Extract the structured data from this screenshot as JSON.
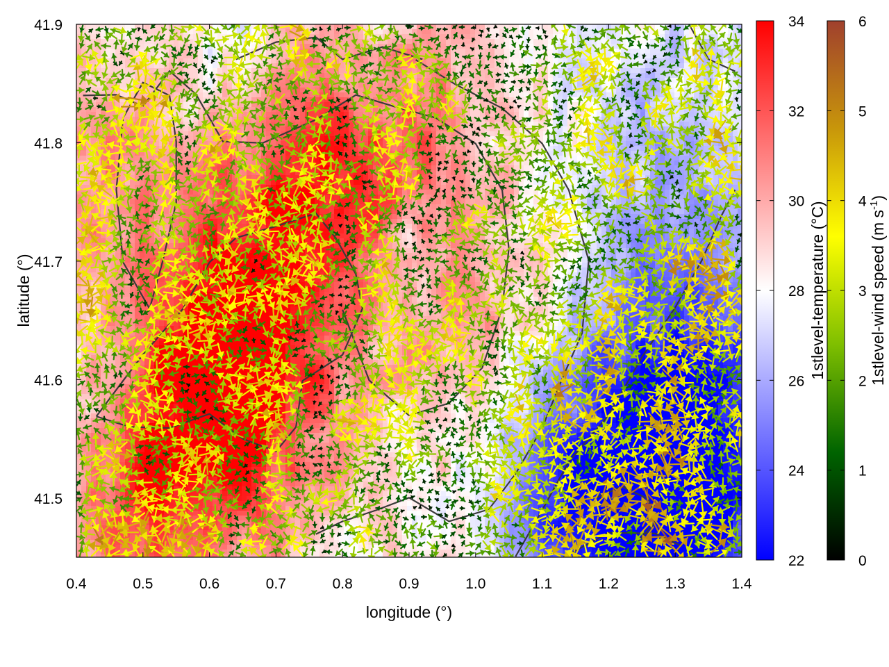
{
  "chart_data": {
    "type": "heatmap",
    "title": "",
    "xlabel": "longitude (°)",
    "ylabel": "latitude (°)",
    "xlim": [
      0.4,
      1.4
    ],
    "ylim": [
      41.45,
      41.9
    ],
    "x_ticks": [
      "0.4",
      "0.5",
      "0.6",
      "0.7",
      "0.8",
      "0.9",
      "1.0",
      "1.1",
      "1.2",
      "1.3",
      "1.4"
    ],
    "y_ticks": [
      "41.5",
      "41.6",
      "41.7",
      "41.8",
      "41.9"
    ],
    "grid": false,
    "legend": "none",
    "temperature_colorbar": {
      "label": "1stlevel-temperature (°C)",
      "range": [
        22,
        34
      ],
      "ticks": [
        "22",
        "24",
        "26",
        "28",
        "30",
        "32",
        "34"
      ],
      "colors": [
        "#0000ff",
        "#ffffff",
        "#ff0000"
      ]
    },
    "wind_colorbar": {
      "label_main": "1stlevel-wind speed (m s",
      "label_sup": "-1",
      "label_end": ")",
      "range": [
        0,
        6
      ],
      "ticks": [
        "0",
        "1",
        "2",
        "3",
        "4",
        "5",
        "6"
      ],
      "colors": [
        "#000000",
        "#006400",
        "#7fbf00",
        "#ffff00",
        "#c8960a",
        "#a0402d"
      ]
    },
    "temperature_field": {
      "background": 28.5,
      "anomalies": [
        {
          "lon": 0.66,
          "lat": 41.59,
          "dT": 4.0,
          "spread": 0.09
        },
        {
          "lon": 0.55,
          "lat": 41.56,
          "dT": 2.5,
          "spread": 0.08
        },
        {
          "lon": 0.5,
          "lat": 41.48,
          "dT": 2.5,
          "spread": 0.07
        },
        {
          "lon": 0.62,
          "lat": 41.67,
          "dT": 2.5,
          "spread": 0.09
        },
        {
          "lon": 0.86,
          "lat": 41.8,
          "dT": 3.0,
          "spread": 0.1
        },
        {
          "lon": 0.75,
          "lat": 41.74,
          "dT": 2.5,
          "spread": 0.09
        },
        {
          "lon": 1.0,
          "lat": 41.67,
          "dT": 1.5,
          "spread": 0.08
        },
        {
          "lon": 0.43,
          "lat": 41.78,
          "dT": 2.0,
          "spread": 0.07
        },
        {
          "lon": 1.22,
          "lat": 41.5,
          "dT": -6.0,
          "spread": 0.1
        },
        {
          "lon": 1.33,
          "lat": 41.47,
          "dT": -4.5,
          "spread": 0.08
        },
        {
          "lon": 1.36,
          "lat": 41.62,
          "dT": -3.0,
          "spread": 0.09
        },
        {
          "lon": 1.3,
          "lat": 41.78,
          "dT": -2.0,
          "spread": 0.12
        },
        {
          "lon": 0.89,
          "lat": 41.7,
          "dT": -2.5,
          "spread": 0.035
        },
        {
          "lon": 0.84,
          "lat": 41.885,
          "dT": -2.0,
          "spread": 0.04
        },
        {
          "lon": 0.64,
          "lat": 41.89,
          "dT": -1.0,
          "spread": 0.05
        },
        {
          "lon": 1.1,
          "lat": 41.48,
          "dT": -2.0,
          "spread": 0.06
        }
      ]
    },
    "wind_field": {
      "lon_step": 0.0125,
      "lat_step": 0.0075,
      "speed_base": 2.2,
      "speed_range": 4.0,
      "gusty_regions": [
        {
          "lon": 1.3,
          "lat": 41.57,
          "boost": 1.6,
          "spread": 0.12
        },
        {
          "lon": 0.47,
          "lat": 41.5,
          "boost": 1.2,
          "spread": 0.1
        },
        {
          "lon": 0.46,
          "lat": 41.75,
          "boost": 1.0,
          "spread": 0.08
        }
      ]
    },
    "contours": [
      [
        [
          0.43,
          41.57
        ],
        [
          0.47,
          41.6
        ],
        [
          0.5,
          41.62
        ],
        [
          0.56,
          41.66
        ],
        [
          0.6,
          41.7
        ],
        [
          0.64,
          41.72
        ],
        [
          0.7,
          41.73
        ],
        [
          0.76,
          41.74
        ],
        [
          0.79,
          41.72
        ],
        [
          0.82,
          41.69
        ],
        [
          0.83,
          41.66
        ],
        [
          0.8,
          41.62
        ],
        [
          0.74,
          41.6
        ],
        [
          0.73,
          41.56
        ],
        [
          0.7,
          41.54
        ],
        [
          0.65,
          41.55
        ],
        [
          0.6,
          41.57
        ],
        [
          0.54,
          41.56
        ],
        [
          0.48,
          41.56
        ],
        [
          0.43,
          41.57
        ]
      ],
      [
        [
          0.41,
          41.84
        ],
        [
          0.46,
          41.84
        ],
        [
          0.5,
          41.83
        ],
        [
          0.54,
          41.86
        ],
        [
          0.58,
          41.84
        ],
        [
          0.62,
          41.8
        ],
        [
          0.68,
          41.8
        ],
        [
          0.76,
          41.82
        ],
        [
          0.82,
          41.84
        ],
        [
          0.88,
          41.83
        ],
        [
          0.94,
          41.82
        ],
        [
          1.0,
          41.8
        ],
        [
          1.04,
          41.76
        ],
        [
          1.05,
          41.71
        ],
        [
          1.04,
          41.66
        ],
        [
          1.01,
          41.61
        ],
        [
          0.96,
          41.58
        ],
        [
          0.9,
          41.57
        ],
        [
          0.84,
          41.6
        ],
        [
          0.8,
          41.66
        ]
      ],
      [
        [
          0.51,
          41.66
        ],
        [
          0.53,
          41.7
        ],
        [
          0.55,
          41.75
        ],
        [
          0.55,
          41.8
        ],
        [
          0.54,
          41.84
        ],
        [
          0.5,
          41.85
        ],
        [
          0.47,
          41.82
        ],
        [
          0.46,
          41.76
        ],
        [
          0.47,
          41.7
        ],
        [
          0.51,
          41.66
        ]
      ],
      [
        [
          0.91,
          41.87
        ],
        [
          0.97,
          41.85
        ],
        [
          1.04,
          41.83
        ],
        [
          1.1,
          41.8
        ],
        [
          1.14,
          41.76
        ],
        [
          1.17,
          41.7
        ],
        [
          1.16,
          41.64
        ],
        [
          1.13,
          41.6
        ],
        [
          1.1,
          41.56
        ],
        [
          1.06,
          41.52
        ],
        [
          1.02,
          41.49
        ],
        [
          0.96,
          41.48
        ],
        [
          0.9,
          41.5
        ],
        [
          0.85,
          41.49
        ],
        [
          0.8,
          41.48
        ],
        [
          0.76,
          41.47
        ]
      ],
      [
        [
          1.06,
          41.45
        ],
        [
          1.1,
          41.49
        ],
        [
          1.14,
          41.53
        ],
        [
          1.2,
          41.57
        ],
        [
          1.25,
          41.62
        ],
        [
          1.3,
          41.66
        ],
        [
          1.34,
          41.7
        ],
        [
          1.37,
          41.74
        ],
        [
          1.39,
          41.76
        ]
      ],
      [
        [
          1.18,
          41.5
        ],
        [
          1.22,
          41.51
        ],
        [
          1.26,
          41.5
        ],
        [
          1.27,
          41.48
        ],
        [
          1.24,
          41.46
        ]
      ],
      [
        [
          0.64,
          41.87
        ],
        [
          0.7,
          41.885
        ],
        [
          0.76,
          41.89
        ],
        [
          0.8,
          41.87
        ],
        [
          0.86,
          41.88
        ],
        [
          0.92,
          41.87
        ]
      ],
      [
        [
          1.32,
          41.9
        ],
        [
          1.35,
          41.87
        ],
        [
          1.39,
          41.86
        ]
      ],
      [
        [
          1.13,
          41.45
        ],
        [
          1.2,
          41.47
        ],
        [
          1.27,
          41.47
        ],
        [
          1.31,
          41.46
        ]
      ]
    ]
  }
}
